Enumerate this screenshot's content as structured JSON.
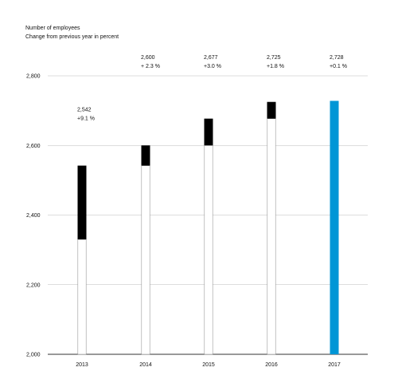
{
  "header": {
    "title": "Number of employees",
    "subtitle": "Change from previous year in percent"
  },
  "colors": {
    "increase": "#000000",
    "base": "#ffffff",
    "outline": "#999999",
    "highlight": "#0096d6",
    "grid": "#bbbbbb",
    "axis": "#333333"
  },
  "chart_data": {
    "type": "bar",
    "title": "Number of employees",
    "subtitle": "Change from previous year in percent",
    "categories": [
      "2013",
      "2014",
      "2015",
      "2016",
      "2017"
    ],
    "values": [
      2542,
      2600,
      2677,
      2725,
      2728
    ],
    "previous_year_values": [
      2330,
      2542,
      2600,
      2677,
      2725
    ],
    "value_labels": [
      "2,542",
      "2,600",
      "2,677",
      "2,725",
      "2,728"
    ],
    "change_labels": [
      "+9.1 %",
      "+ 2.3 %",
      "+3.0 %",
      "+1.8 %",
      "+0.1 %"
    ],
    "highlighted_category": "2017",
    "ylim": [
      2000,
      2800
    ],
    "yticks": [
      2000,
      2200,
      2400,
      2600,
      2800
    ],
    "ytick_labels": [
      "2,000",
      "2,200",
      "2,400",
      "2,600",
      "2,800"
    ],
    "xlabel": "",
    "ylabel": "",
    "grid": true,
    "legend": "none"
  }
}
